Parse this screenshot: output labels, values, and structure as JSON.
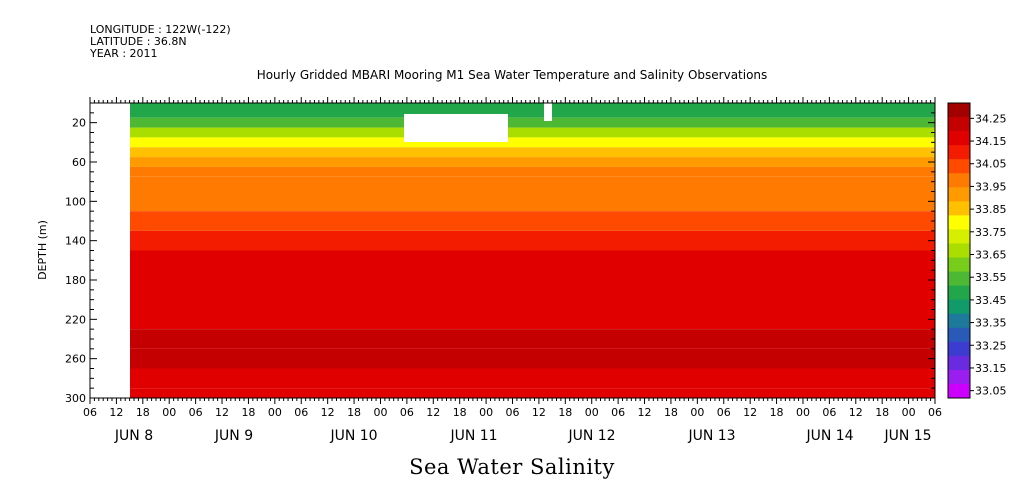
{
  "meta": {
    "longitude": "LONGITUDE : 122W(-122)",
    "latitude": "LATITUDE : 36.8N",
    "year": "YEAR : 2011"
  },
  "chart_data": {
    "type": "heatmap",
    "title": "Hourly Gridded MBARI Mooring M1 Sea Water Temperature and Salinity Observations",
    "subtitle": "Sea Water Salinity",
    "ylabel": "DEPTH (m)",
    "xlabel": "",
    "ylim": [
      300,
      0
    ],
    "y_ticks": [
      20,
      60,
      100,
      140,
      180,
      220,
      260,
      300
    ],
    "x_hour_labels": [
      "06",
      "12",
      "18",
      "00",
      "06",
      "12",
      "18",
      "00",
      "06",
      "12",
      "18",
      "00",
      "06",
      "12",
      "18",
      "00",
      "06",
      "12",
      "18",
      "00",
      "06",
      "12",
      "18",
      "00",
      "06",
      "12",
      "18",
      "00",
      "06",
      "12",
      "18",
      "00",
      "06"
    ],
    "x_day_labels": [
      "JUN  8",
      "JUN  9",
      "JUN 10",
      "JUN 11",
      "JUN 12",
      "JUN 13",
      "JUN 14",
      "JUN 15"
    ],
    "colorbar": {
      "labels": [
        "34.25",
        "34.15",
        "34.05",
        "33.95",
        "33.85",
        "33.75",
        "33.65",
        "33.55",
        "33.45",
        "33.35",
        "33.25",
        "33.15",
        "33.05"
      ],
      "colors": [
        "#a30000",
        "#c40000",
        "#e00000",
        "#f41c00",
        "#ff4a00",
        "#ff7a00",
        "#ff9a00",
        "#ffc000",
        "#ffff00",
        "#d6ef00",
        "#a9de00",
        "#78cc1a",
        "#4cb834",
        "#22a64a",
        "#119a6a",
        "#1d7a9a",
        "#2a5ab8",
        "#3c3cd0",
        "#6a2ae0",
        "#9a1ef0",
        "#cc00ff"
      ]
    },
    "depth_profile": [
      {
        "depth": 10,
        "salinity": 33.45
      },
      {
        "depth": 20,
        "salinity": 33.55
      },
      {
        "depth": 30,
        "salinity": 33.65
      },
      {
        "depth": 40,
        "salinity": 33.75
      },
      {
        "depth": 50,
        "salinity": 33.85
      },
      {
        "depth": 60,
        "salinity": 33.9
      },
      {
        "depth": 70,
        "salinity": 33.95
      },
      {
        "depth": 80,
        "salinity": 34.0
      },
      {
        "depth": 100,
        "salinity": 34.0
      },
      {
        "depth": 120,
        "salinity": 34.05
      },
      {
        "depth": 140,
        "salinity": 34.1
      },
      {
        "depth": 160,
        "salinity": 34.15
      },
      {
        "depth": 200,
        "salinity": 34.15
      },
      {
        "depth": 220,
        "salinity": 34.2
      },
      {
        "depth": 240,
        "salinity": 34.25
      },
      {
        "depth": 260,
        "salinity": 34.25
      },
      {
        "depth": 280,
        "salinity": 34.2
      },
      {
        "depth": 300,
        "salinity": 34.15
      }
    ]
  }
}
